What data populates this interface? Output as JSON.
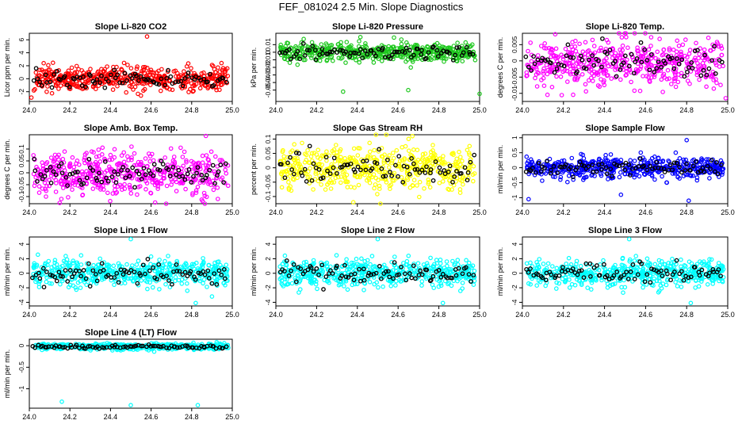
{
  "page": {
    "title": "FEF_081024  2.5 Min. Slope Diagnostics"
  },
  "colors": {
    "background": "#ffffff",
    "axis": "#000000",
    "highlight": "#000000"
  },
  "chart_data": [
    {
      "type": "scatter",
      "title": "Slope Li-820 CO2",
      "xlabel": "",
      "ylabel": "Licor ppm per min.",
      "xlim": [
        24.0,
        25.0
      ],
      "ylim": [
        -3.5,
        7.0
      ],
      "xticks": [
        "24.0",
        "24.2",
        "24.4",
        "24.6",
        "24.8",
        "25.0"
      ],
      "yticks": [
        -2,
        0,
        2,
        4,
        6
      ],
      "color": "#ff0000",
      "series_color_name": "red",
      "spread": 0.9,
      "center": 0.0,
      "points": 500,
      "highlight_points": 85,
      "outliers": [
        {
          "x": 24.58,
          "y": 6.5
        },
        {
          "x": 24.55,
          "y": -2.6
        },
        {
          "x": 24.01,
          "y": -2.9
        }
      ]
    },
    {
      "type": "scatter",
      "title": "Slope Li-820 Pressure",
      "xlabel": "",
      "ylabel": "kPa per min.",
      "xlim": [
        24.0,
        25.0
      ],
      "ylim": [
        -0.065,
        0.025
      ],
      "xticks": [
        "24.0",
        "24.2",
        "24.4",
        "24.6",
        "24.8",
        "25.0"
      ],
      "yticks": [
        -0.05,
        -0.04,
        -0.03,
        -0.02,
        -0.01,
        0.0,
        0.01
      ],
      "color": "#1ec81e",
      "series_color_name": "green",
      "spread": 0.006,
      "center": 0.0,
      "points": 500,
      "highlight_points": 85,
      "outliers": [
        {
          "x": 24.33,
          "y": -0.052
        },
        {
          "x": 24.65,
          "y": -0.05
        },
        {
          "x": 25.0,
          "y": -0.055
        }
      ]
    },
    {
      "type": "scatter",
      "title": "Slope Li-820 Temp.",
      "xlabel": "",
      "ylabel": "degrees C per min.",
      "xlim": [
        24.0,
        25.0
      ],
      "ylim": [
        -0.0125,
        0.0085
      ],
      "xticks": [
        "24.0",
        "24.2",
        "24.4",
        "24.6",
        "24.8",
        "25.0"
      ],
      "yticks": [
        -0.01,
        -0.005,
        0.0,
        0.005
      ],
      "color": "#ff00ff",
      "series_color_name": "magenta",
      "spread": 0.0038,
      "center": -0.001,
      "points": 500,
      "highlight_points": 85,
      "outliers": [
        {
          "x": 24.16,
          "y": 0.0082
        },
        {
          "x": 24.99,
          "y": -0.0115
        }
      ]
    },
    {
      "type": "scatter",
      "title": "Slope Amb. Box Temp.",
      "xlabel": "",
      "ylabel": "degrees C per min.",
      "xlim": [
        24.0,
        25.0
      ],
      "ylim": [
        -0.13,
        0.16
      ],
      "xticks": [
        "24.0",
        "24.2",
        "24.4",
        "24.6",
        "24.8",
        "25.0"
      ],
      "yticks": [
        -0.1,
        -0.05,
        0.0,
        0.05,
        0.1
      ],
      "color": "#ff00ff",
      "series_color_name": "magenta",
      "spread": 0.045,
      "center": 0.0,
      "points": 500,
      "highlight_points": 85,
      "outliers": [
        {
          "x": 24.62,
          "y": -0.125
        },
        {
          "x": 24.87,
          "y": 0.155
        }
      ]
    },
    {
      "type": "scatter",
      "title": "Slope Gas Stream RH",
      "xlabel": "",
      "ylabel": "percent per min.",
      "xlim": [
        24.0,
        25.0
      ],
      "ylim": [
        -0.125,
        0.115
      ],
      "xticks": [
        "24.0",
        "24.2",
        "24.4",
        "24.6",
        "24.8",
        "25.0"
      ],
      "yticks": [
        -0.1,
        -0.05,
        0.0,
        0.05,
        0.1
      ],
      "color": "#ffff00",
      "series_color_name": "yellow",
      "spread": 0.04,
      "center": 0.0,
      "points": 500,
      "highlight_points": 85,
      "outliers": [
        {
          "x": 24.38,
          "y": -0.12
        },
        {
          "x": 24.67,
          "y": 0.11
        }
      ]
    },
    {
      "type": "scatter",
      "title": "Slope Sample Flow",
      "xlabel": "",
      "ylabel": "ml/min per min.",
      "xlim": [
        24.0,
        25.0
      ],
      "ylim": [
        -1.2,
        1.1
      ],
      "xticks": [
        "24.0",
        "24.2",
        "24.4",
        "24.6",
        "24.8",
        "25.0"
      ],
      "yticks": [
        -1.0,
        -0.5,
        0.0,
        0.5,
        1.0
      ],
      "color": "#0000ff",
      "series_color_name": "blue",
      "spread": 0.17,
      "center": 0.0,
      "points": 500,
      "highlight_points": 85,
      "outliers": [
        {
          "x": 24.03,
          "y": -1.05
        },
        {
          "x": 24.48,
          "y": -0.9
        },
        {
          "x": 24.81,
          "y": -1.1
        },
        {
          "x": 24.8,
          "y": 0.92
        }
      ]
    },
    {
      "type": "scatter",
      "title": "Slope Line 1 Flow",
      "xlabel": "",
      "ylabel": "ml/min per min.",
      "xlim": [
        24.0,
        25.0
      ],
      "ylim": [
        -4.5,
        5.0
      ],
      "xticks": [
        "24.0",
        "24.2",
        "24.4",
        "24.6",
        "24.8",
        "25.0"
      ],
      "yticks": [
        -4,
        -2,
        0,
        2,
        4
      ],
      "color": "#00ffff",
      "series_color_name": "cyan",
      "spread": 0.9,
      "center": 0.0,
      "points": 500,
      "highlight_points": 85,
      "outliers": [
        {
          "x": 24.5,
          "y": 4.7
        },
        {
          "x": 24.82,
          "y": -4.1
        },
        {
          "x": 24.9,
          "y": -3.2
        }
      ]
    },
    {
      "type": "scatter",
      "title": "Slope Line 2 Flow",
      "xlabel": "",
      "ylabel": "ml/min per min.",
      "xlim": [
        24.0,
        25.0
      ],
      "ylim": [
        -4.5,
        5.0
      ],
      "xticks": [
        "24.0",
        "24.2",
        "24.4",
        "24.6",
        "24.8",
        "25.0"
      ],
      "yticks": [
        -4,
        -2,
        0,
        2,
        4
      ],
      "color": "#00ffff",
      "series_color_name": "cyan",
      "spread": 0.9,
      "center": 0.0,
      "points": 500,
      "highlight_points": 85,
      "outliers": [
        {
          "x": 24.5,
          "y": 4.7
        },
        {
          "x": 24.82,
          "y": -4.1
        }
      ]
    },
    {
      "type": "scatter",
      "title": "Slope Line 3 Flow",
      "xlabel": "",
      "ylabel": "ml/min per min.",
      "xlim": [
        24.0,
        25.0
      ],
      "ylim": [
        -4.5,
        5.0
      ],
      "xticks": [
        "24.0",
        "24.2",
        "24.4",
        "24.6",
        "24.8",
        "25.0"
      ],
      "yticks": [
        -4,
        -2,
        0,
        2,
        4
      ],
      "color": "#00ffff",
      "series_color_name": "cyan",
      "spread": 0.9,
      "center": 0.0,
      "points": 500,
      "highlight_points": 85,
      "outliers": [
        {
          "x": 24.52,
          "y": 4.7
        },
        {
          "x": 24.82,
          "y": -4.1
        }
      ]
    },
    {
      "type": "scatter",
      "title": "Slope Line 4 (LT) Flow",
      "xlabel": "",
      "ylabel": "ml/min per min.",
      "xlim": [
        24.0,
        25.0
      ],
      "ylim": [
        -1.45,
        0.15
      ],
      "xticks": [
        "24.0",
        "24.2",
        "24.4",
        "24.6",
        "24.8",
        "25.0"
      ],
      "yticks": [
        -1.0,
        -0.5,
        0.0
      ],
      "color": "#00ffff",
      "series_color_name": "cyan",
      "spread": 0.035,
      "center": -0.02,
      "points": 500,
      "highlight_points": 85,
      "outliers": [
        {
          "x": 24.16,
          "y": -1.3
        },
        {
          "x": 24.5,
          "y": -1.38
        },
        {
          "x": 24.83,
          "y": -1.38
        }
      ]
    }
  ]
}
